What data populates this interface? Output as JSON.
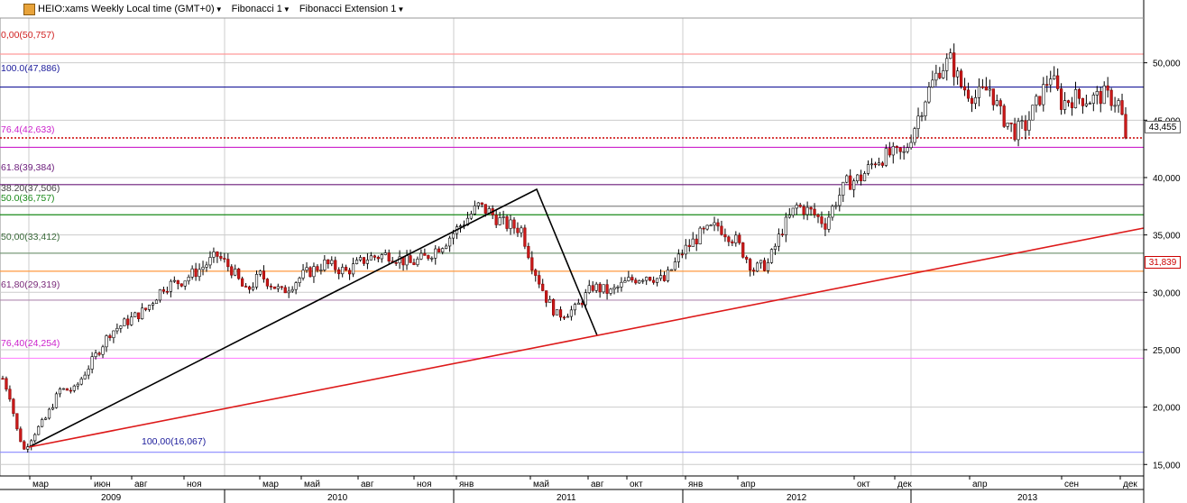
{
  "header": {
    "symbol": "HEIO:xams Weekly Local time (GMT+0)",
    "fib1": "Fibonacci 1",
    "fib2": "Fibonacci Extension 1"
  },
  "price_labels": {
    "current": "43,455",
    "trend": "31,839"
  },
  "fib_labels": [
    {
      "text": "0,00(50,757)",
      "value": 50.757,
      "color": "#d02020"
    },
    {
      "text": "100.0(47,886)",
      "value": 47.886,
      "color": "#1a1a9a"
    },
    {
      "text": "76.4(42,633)",
      "value": 42.633,
      "color": "#cc22cc"
    },
    {
      "text": "61.8(39,384)",
      "value": 39.384,
      "color": "#6a1a7a"
    },
    {
      "text": "38.20(37,506)",
      "value": 37.506,
      "color": "#444444"
    },
    {
      "text": "50.0(36,757)",
      "value": 36.757,
      "color": "#1a8a1a"
    },
    {
      "text": "50,00(33,412)",
      "value": 33.412,
      "color": "#3a6a3a"
    },
    {
      "text": "61,80(29,319)",
      "value": 29.319,
      "color": "#7a2a7a"
    },
    {
      "text": "76,40(24,254)",
      "value": 24.254,
      "color": "#cc22cc"
    },
    {
      "text": "100,00(16,067)",
      "value": 16.067,
      "color": "#1a1a9a"
    }
  ],
  "chart_data": {
    "type": "candlestick",
    "title": "HEIO:xams Weekly Local time (GMT+0)",
    "y_ticks": [
      "15,000",
      "20,000",
      "25,000",
      "30,000",
      "35,000",
      "40,000",
      "45,000",
      "50,000"
    ],
    "y_tick_values": [
      15,
      20,
      25,
      30,
      35,
      40,
      45,
      50
    ],
    "ylim": [
      14.0,
      53.9
    ],
    "month_labels": [
      "мар",
      "июн",
      "авг",
      "ноя",
      "мар",
      "май",
      "авг",
      "ноя",
      "янв",
      "май",
      "авг",
      "окт",
      "янв",
      "апр",
      "окт",
      "дек",
      "апр",
      "сен",
      "дек"
    ],
    "year_labels": [
      "2009",
      "2010",
      "2011",
      "2012",
      "2013"
    ],
    "current_price": 43.455,
    "trend_price": 31.839,
    "fib_levels": [
      {
        "value": 50.757,
        "color": "#ff9a9a",
        "style": "solid"
      },
      {
        "value": 47.886,
        "color": "#1a1a9a",
        "style": "solid"
      },
      {
        "value": 43.455,
        "color": "#cc0000",
        "style": "dotted"
      },
      {
        "value": 42.633,
        "color": "#cc22cc",
        "style": "solid"
      },
      {
        "value": 39.384,
        "color": "#6a1a7a",
        "style": "solid"
      },
      {
        "value": 37.506,
        "color": "#888888",
        "style": "solid"
      },
      {
        "value": 36.757,
        "color": "#1a8a1a",
        "style": "solid"
      },
      {
        "value": 33.412,
        "color": "#7a9a7a",
        "style": "solid"
      },
      {
        "value": 31.839,
        "color": "#ff9a40",
        "style": "solid"
      },
      {
        "value": 29.319,
        "color": "#b08ab0",
        "style": "solid"
      },
      {
        "value": 24.254,
        "color": "#ff88ff",
        "style": "solid"
      },
      {
        "value": 16.067,
        "color": "#8a8aff",
        "style": "solid"
      }
    ],
    "waypoints": [
      [
        0,
        22.5
      ],
      [
        2,
        21.0
      ],
      [
        4,
        18.0
      ],
      [
        6,
        16.3
      ],
      [
        9,
        17.8
      ],
      [
        12,
        19.0
      ],
      [
        16,
        21.5
      ],
      [
        20,
        21.5
      ],
      [
        25,
        24.0
      ],
      [
        30,
        26.5
      ],
      [
        35,
        27.5
      ],
      [
        40,
        28.5
      ],
      [
        45,
        30.5
      ],
      [
        50,
        31.0
      ],
      [
        55,
        32.0
      ],
      [
        60,
        33.2
      ],
      [
        64,
        32.0
      ],
      [
        68,
        30.0
      ],
      [
        72,
        31.5
      ],
      [
        78,
        30.0
      ],
      [
        84,
        31.5
      ],
      [
        90,
        32.5
      ],
      [
        96,
        31.8
      ],
      [
        102,
        33.0
      ],
      [
        108,
        33.3
      ],
      [
        114,
        32.5
      ],
      [
        118,
        33.0
      ],
      [
        124,
        34.5
      ],
      [
        130,
        36.5
      ],
      [
        133,
        37.5
      ],
      [
        136,
        37.0
      ],
      [
        140,
        36.0
      ],
      [
        145,
        35.5
      ],
      [
        148,
        32.5
      ],
      [
        152,
        29.5
      ],
      [
        155,
        28.0
      ],
      [
        160,
        28.5
      ],
      [
        165,
        30.5
      ],
      [
        170,
        30.0
      ],
      [
        175,
        31.0
      ],
      [
        180,
        31.5
      ],
      [
        185,
        31.0
      ],
      [
        190,
        33.5
      ],
      [
        195,
        35.0
      ],
      [
        200,
        35.8
      ],
      [
        205,
        34.5
      ],
      [
        210,
        32.0
      ],
      [
        214,
        32.5
      ],
      [
        218,
        35.5
      ],
      [
        222,
        37.5
      ],
      [
        226,
        37.0
      ],
      [
        230,
        36.0
      ],
      [
        233,
        38.0
      ],
      [
        236,
        39.5
      ],
      [
        240,
        40.0
      ],
      [
        244,
        41.5
      ],
      [
        248,
        42.0
      ],
      [
        252,
        42.0
      ],
      [
        255,
        44.5
      ],
      [
        258,
        47.0
      ],
      [
        262,
        49.5
      ],
      [
        265,
        50.2
      ],
      [
        268,
        48.0
      ],
      [
        272,
        47.0
      ],
      [
        276,
        47.8
      ],
      [
        279,
        45.5
      ],
      [
        283,
        44.0
      ],
      [
        286,
        44.5
      ],
      [
        290,
        47.0
      ],
      [
        293,
        49.0
      ],
      [
        296,
        46.5
      ],
      [
        300,
        47.0
      ],
      [
        304,
        46.8
      ],
      [
        308,
        47.2
      ],
      [
        312,
        46.5
      ],
      [
        314,
        44.0
      ]
    ],
    "candle_count": 315
  }
}
